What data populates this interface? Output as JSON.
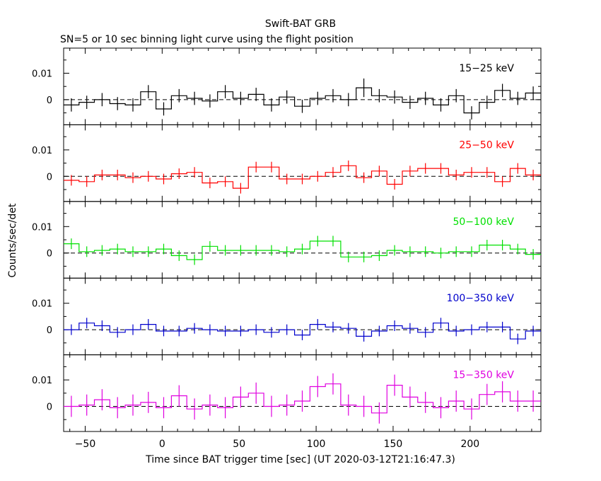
{
  "chart_data": {
    "type": "line",
    "title": "Swift-BAT GRB",
    "subtitle": "SN=5 or 10 sec binning light curve using the flight position",
    "xlabel": "Time since BAT trigger time [sec] (UT 2020-03-12T21:16:47.3)",
    "ylabel": "Counts/sec/det",
    "xlim": [
      -64,
      246
    ],
    "ylim": [
      -0.0095,
      0.0195
    ],
    "x_ticks": [
      -50,
      0,
      50,
      100,
      150,
      200
    ],
    "x_tick_labels": [
      "−50",
      "0",
      "50",
      "100",
      "150",
      "200"
    ],
    "y_ticks": [
      0,
      0.01
    ],
    "y_tick_labels": [
      "0",
      "0.01"
    ],
    "bin_edges": [
      -64,
      -54,
      -44,
      -34,
      -24,
      -14,
      -4,
      6,
      16,
      26,
      36,
      46,
      56,
      66,
      76,
      86,
      96,
      106,
      116,
      126,
      136,
      146,
      156,
      166,
      176,
      186,
      196,
      206,
      216,
      226,
      236,
      246
    ],
    "baseline": 0,
    "series": [
      {
        "name": "15−25 keV",
        "color": "#000000",
        "values": [
          -0.002,
          -0.001,
          0.0,
          -0.0015,
          -0.002,
          0.003,
          -0.0035,
          0.0015,
          0.0005,
          -0.0005,
          0.003,
          0.0005,
          0.002,
          -0.002,
          0.001,
          -0.0025,
          0.0005,
          0.0015,
          0.0,
          0.0045,
          0.0015,
          0.001,
          -0.001,
          0.0005,
          -0.002,
          0.0015,
          -0.005,
          -0.001,
          0.0035,
          0.0005,
          0.0025
        ],
        "errors": [
          0.0025,
          0.0025,
          0.0025,
          0.0025,
          0.0025,
          0.0025,
          0.0025,
          0.0025,
          0.0025,
          0.0025,
          0.0025,
          0.0025,
          0.0025,
          0.0025,
          0.0025,
          0.0025,
          0.0025,
          0.0025,
          0.0025,
          0.0035,
          0.0025,
          0.0025,
          0.0025,
          0.0025,
          0.0025,
          0.0025,
          0.0025,
          0.0025,
          0.0025,
          0.0025,
          0.0025
        ]
      },
      {
        "name": "25−50 keV",
        "color": "#ff0000",
        "values": [
          -0.0015,
          -0.002,
          0.0005,
          0.0005,
          -0.0005,
          0.0,
          -0.001,
          0.001,
          0.0015,
          -0.0025,
          -0.002,
          -0.0045,
          0.0035,
          0.0035,
          -0.001,
          -0.001,
          0.0,
          0.0015,
          0.004,
          -0.0005,
          0.002,
          -0.003,
          0.002,
          0.003,
          0.003,
          0.0005,
          0.0015,
          0.0015,
          -0.002,
          0.003,
          0.0005
        ],
        "errors": [
          0.002,
          0.002,
          0.002,
          0.002,
          0.002,
          0.002,
          0.002,
          0.002,
          0.002,
          0.002,
          0.002,
          0.002,
          0.002,
          0.002,
          0.002,
          0.002,
          0.002,
          0.002,
          0.002,
          0.002,
          0.002,
          0.002,
          0.002,
          0.002,
          0.002,
          0.002,
          0.002,
          0.002,
          0.002,
          0.002,
          0.002
        ]
      },
      {
        "name": "50−100 keV",
        "color": "#00e000",
        "values": [
          0.0035,
          0.0005,
          0.001,
          0.0015,
          0.0005,
          0.0005,
          0.0015,
          -0.001,
          -0.0025,
          0.0025,
          0.001,
          0.001,
          0.001,
          0.001,
          0.0005,
          0.0015,
          0.0045,
          0.0045,
          -0.0015,
          -0.0015,
          -0.001,
          0.001,
          0.0005,
          0.0005,
          0.0,
          0.0005,
          0.0005,
          0.003,
          0.003,
          0.0015,
          -0.0005
        ],
        "errors": [
          0.002,
          0.002,
          0.002,
          0.002,
          0.002,
          0.002,
          0.002,
          0.002,
          0.002,
          0.002,
          0.002,
          0.002,
          0.002,
          0.002,
          0.002,
          0.002,
          0.002,
          0.002,
          0.002,
          0.002,
          0.002,
          0.002,
          0.002,
          0.002,
          0.002,
          0.002,
          0.002,
          0.002,
          0.002,
          0.002,
          0.002
        ]
      },
      {
        "name": "100−350 keV",
        "color": "#0000cc",
        "values": [
          0.0,
          0.0025,
          0.0015,
          -0.001,
          0.0,
          0.002,
          -0.0005,
          -0.0005,
          0.0005,
          0.0,
          -0.0005,
          -0.0005,
          0.0,
          -0.001,
          0.0,
          -0.002,
          0.002,
          0.001,
          0.0005,
          -0.0025,
          -0.0005,
          0.0015,
          0.0005,
          -0.001,
          0.0025,
          -0.0005,
          0.0,
          0.001,
          0.001,
          -0.0035,
          -0.0005
        ],
        "errors": [
          0.002,
          0.002,
          0.002,
          0.002,
          0.002,
          0.002,
          0.002,
          0.002,
          0.002,
          0.002,
          0.002,
          0.002,
          0.002,
          0.002,
          0.002,
          0.002,
          0.002,
          0.002,
          0.002,
          0.002,
          0.002,
          0.002,
          0.002,
          0.002,
          0.002,
          0.002,
          0.002,
          0.002,
          0.002,
          0.002,
          0.002
        ]
      },
      {
        "name": "15−350 keV",
        "color": "#e000e0",
        "values": [
          0.0,
          0.0005,
          0.0025,
          -0.0005,
          0.0005,
          0.0015,
          -0.0005,
          0.004,
          -0.001,
          0.0005,
          -0.0005,
          0.0035,
          0.005,
          0.0,
          0.0005,
          0.002,
          0.0075,
          0.0085,
          0.0005,
          0.0,
          -0.0025,
          0.008,
          0.0035,
          0.0015,
          -0.0005,
          0.002,
          -0.001,
          0.0045,
          0.0055,
          0.002,
          0.002
        ],
        "errors": [
          0.004,
          0.004,
          0.004,
          0.004,
          0.004,
          0.004,
          0.004,
          0.004,
          0.004,
          0.004,
          0.004,
          0.004,
          0.004,
          0.004,
          0.004,
          0.004,
          0.004,
          0.004,
          0.004,
          0.004,
          0.004,
          0.004,
          0.004,
          0.004,
          0.004,
          0.004,
          0.004,
          0.004,
          0.004,
          0.004,
          0.004
        ]
      }
    ]
  }
}
